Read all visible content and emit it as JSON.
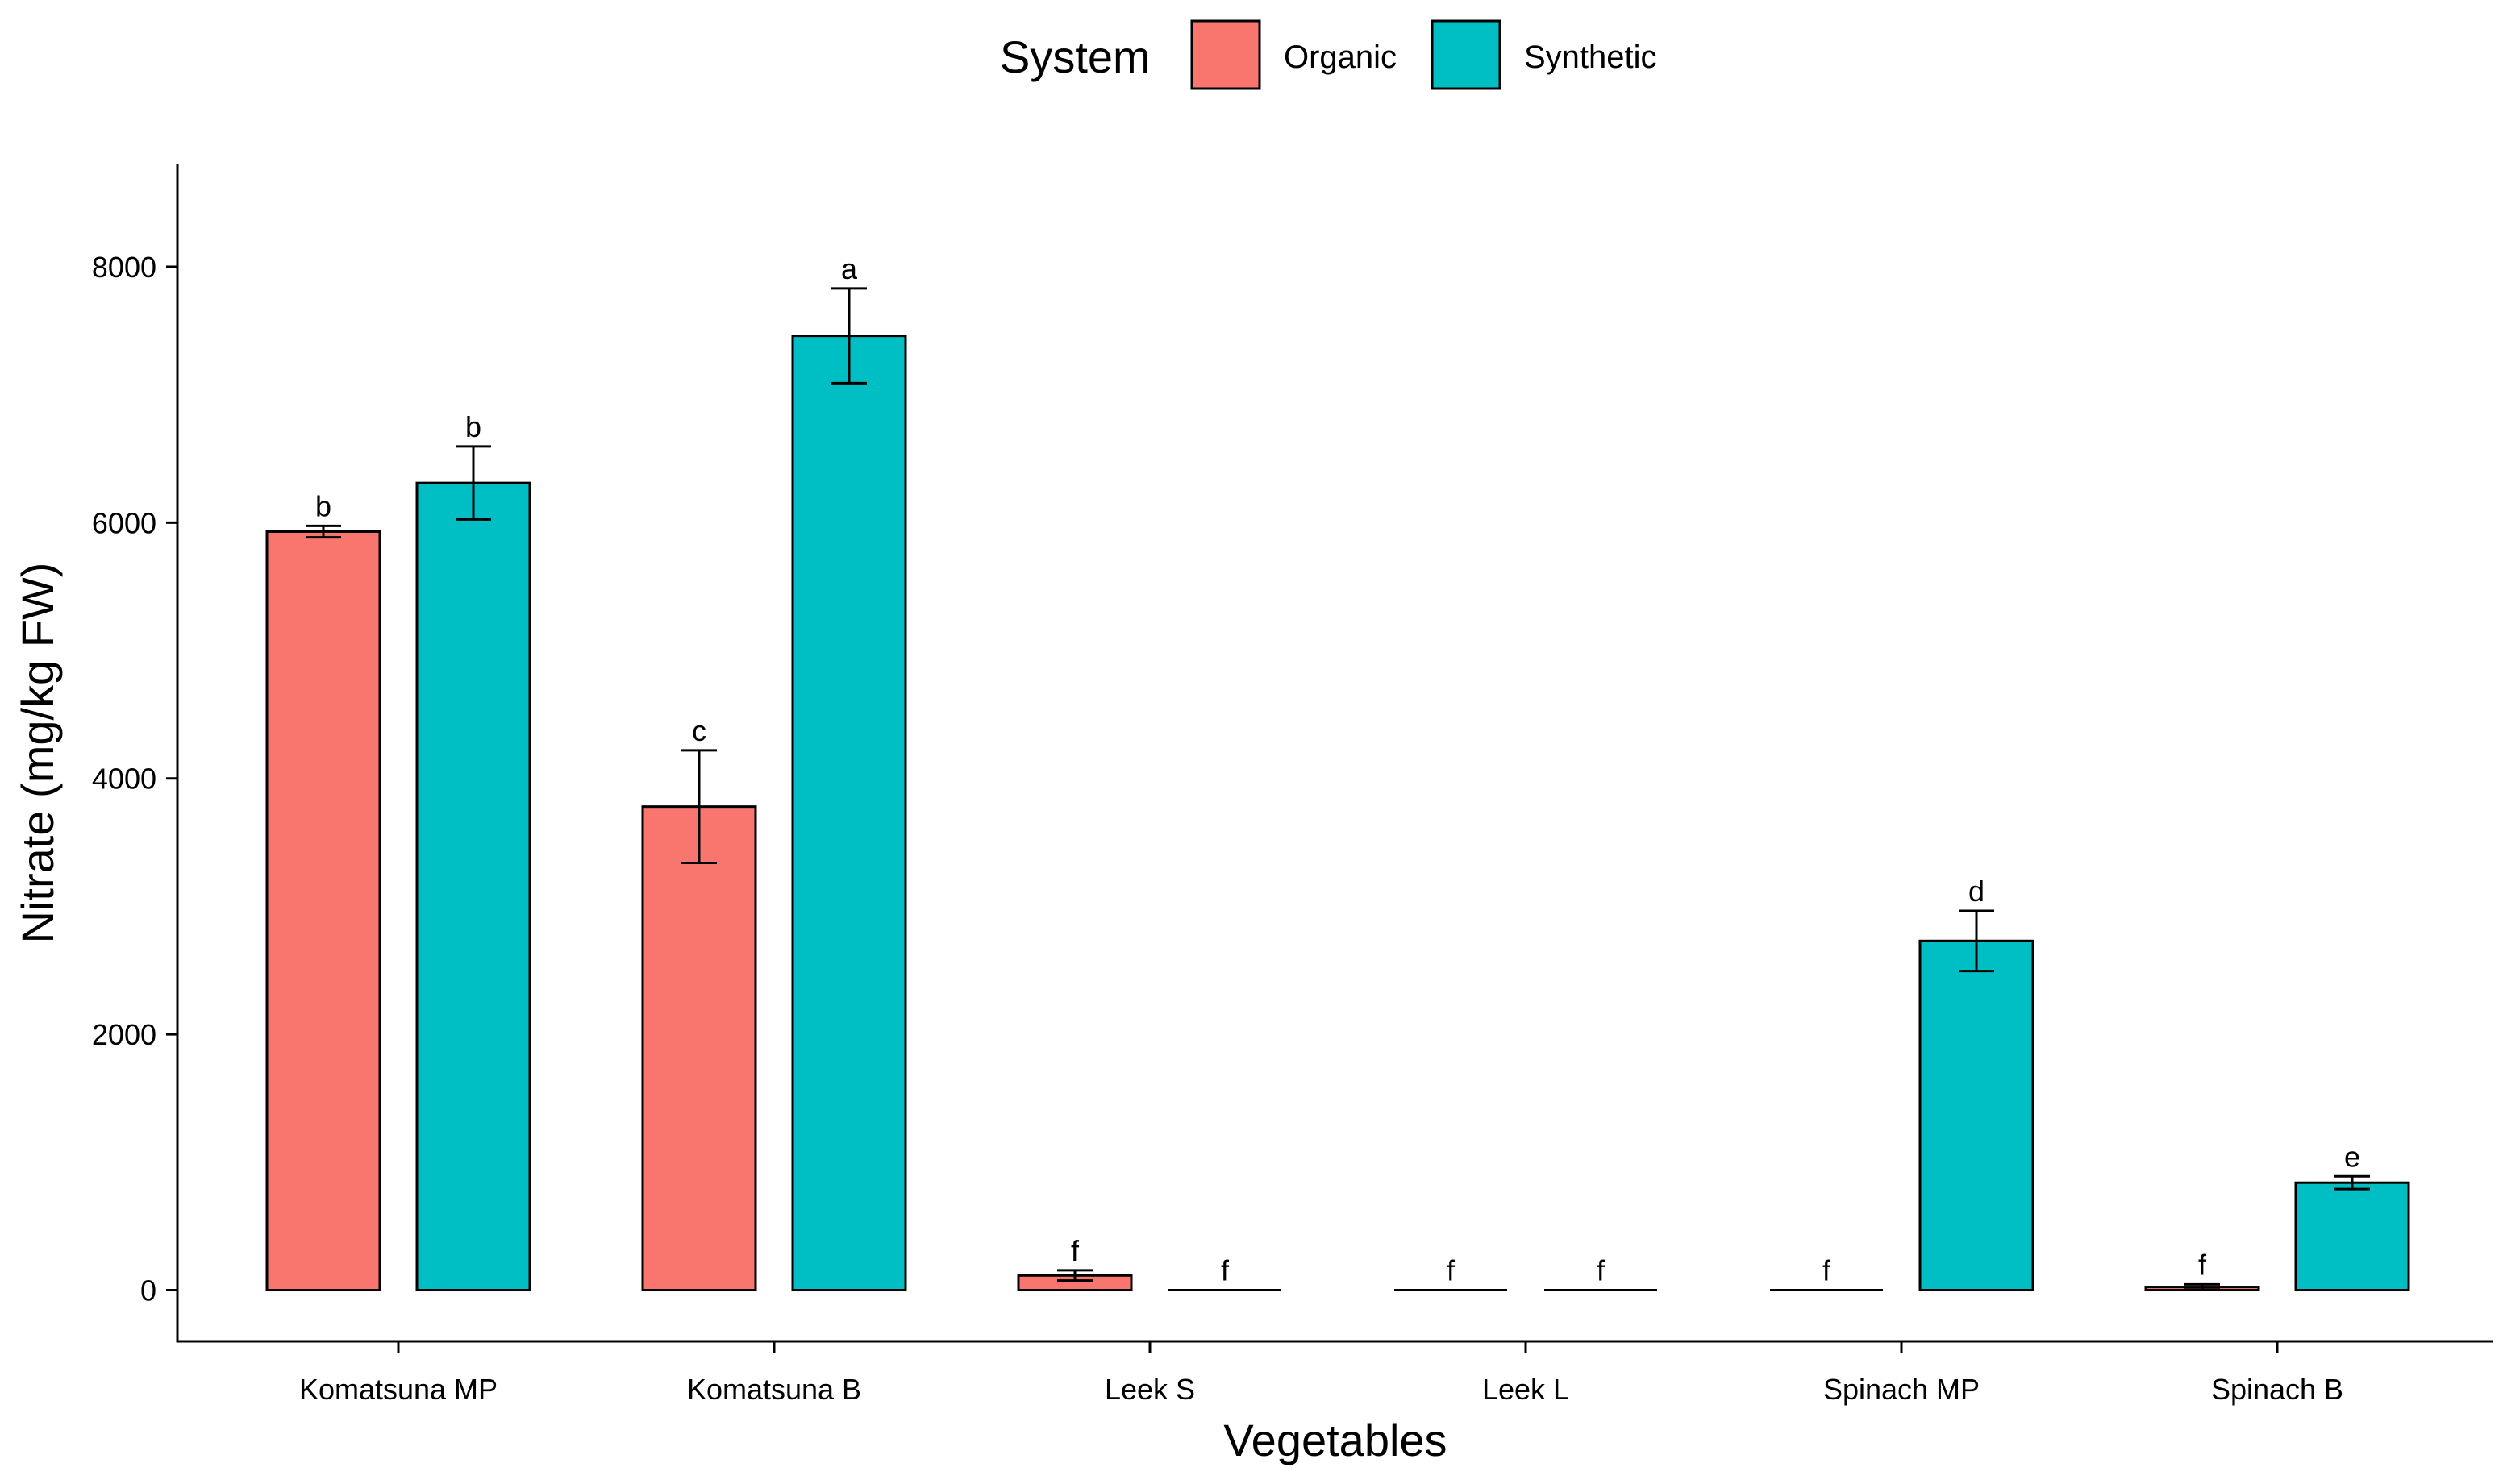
{
  "chart_data": {
    "type": "bar",
    "title": "",
    "xlabel": "Vegetables",
    "ylabel": "Nitrate (mg/kg FW)",
    "ylim": [
      -400,
      8800
    ],
    "yticks": [
      0,
      2000,
      4000,
      6000,
      8000
    ],
    "categories": [
      "Komatsuna MP",
      "Komatsuna B",
      "Leek S",
      "Leek L",
      "Spinach MP",
      "Spinach B"
    ],
    "legend": {
      "title": "System",
      "position": "top"
    },
    "series": [
      {
        "name": "Organic",
        "color": "#F8766D",
        "values": [
          5930,
          3780,
          115,
          0,
          0,
          25
        ],
        "errors": [
          45,
          440,
          40,
          0,
          0,
          20
        ],
        "letters": [
          "b",
          "c",
          "f",
          "f",
          "f",
          "f"
        ]
      },
      {
        "name": "Synthetic",
        "color": "#00BFC4",
        "values": [
          6310,
          7460,
          0,
          0,
          2730,
          840
        ],
        "errors": [
          285,
          370,
          0,
          0,
          235,
          50
        ],
        "letters": [
          "b",
          "a",
          "f",
          "f",
          "d",
          "e"
        ]
      }
    ]
  }
}
